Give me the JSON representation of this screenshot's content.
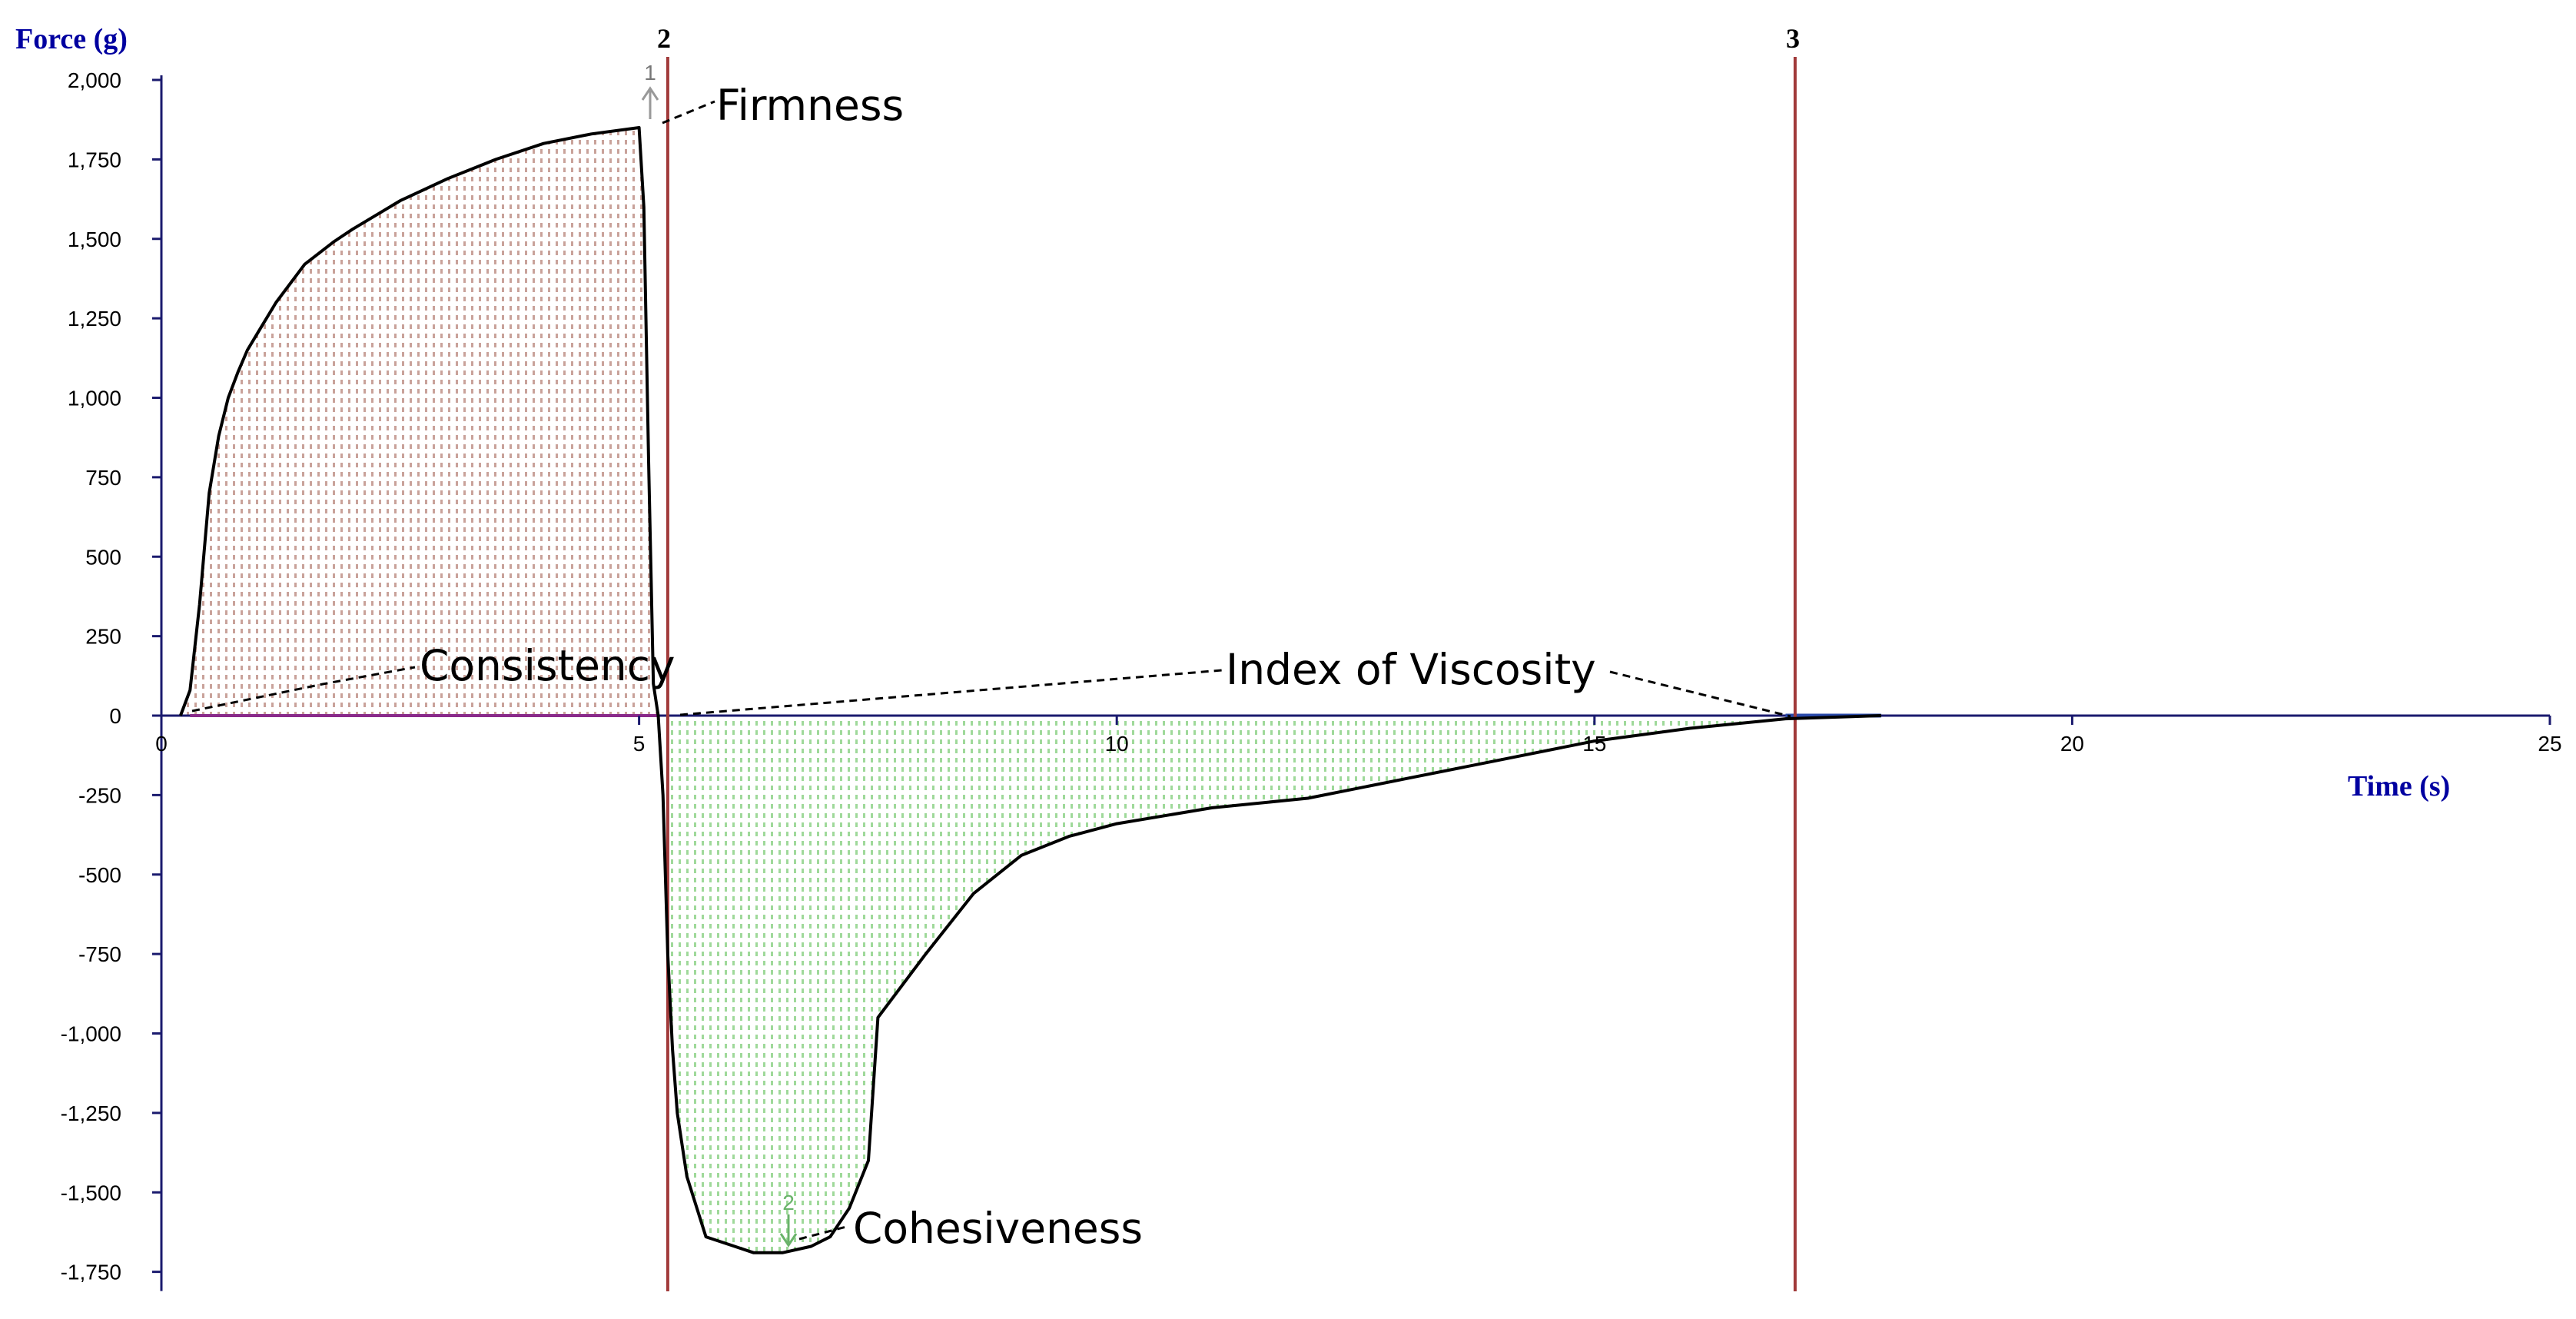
{
  "chart_data": {
    "type": "area",
    "xlabel": "Time (s)",
    "ylabel": "Force (g)",
    "xlim": [
      0,
      25
    ],
    "ylim": [
      -1750,
      2000
    ],
    "x_ticks": [
      "0",
      "5",
      "10",
      "15",
      "20",
      "25"
    ],
    "y_ticks": [
      "2,000",
      "1,750",
      "1,500",
      "1,250",
      "1,000",
      "750",
      "500",
      "250",
      "0",
      "-250",
      "-500",
      "-750",
      "-1,000",
      "-1,250",
      "-1,500",
      "-1,750"
    ],
    "x_tick_values": [
      0,
      5,
      10,
      15,
      20,
      25
    ],
    "y_tick_values": [
      2000,
      1750,
      1500,
      1250,
      1000,
      750,
      500,
      250,
      0,
      -250,
      -500,
      -750,
      -1000,
      -1250,
      -1500,
      -1750
    ],
    "grid": false,
    "series": [
      {
        "positive_color": "#c9a29a",
        "negative_color": "#9fd99a",
        "x": [
          0.2,
          0.3,
          0.4,
          0.5,
          0.6,
          0.7,
          0.8,
          0.9,
          1.0,
          1.2,
          1.5,
          1.8,
          2.0,
          2.5,
          3.0,
          3.5,
          4.0,
          4.5,
          5.0,
          5.05,
          5.1,
          5.15,
          5.2,
          5.25,
          5.3,
          5.35,
          5.4,
          5.5,
          5.7,
          5.9,
          6.0,
          6.2,
          6.5,
          6.8,
          7.0,
          7.2,
          7.4,
          7.5,
          8.0,
          8.5,
          9.0,
          9.5,
          10.0,
          11.0,
          12.0,
          13.0,
          14.0,
          15.0,
          16.0,
          17.0,
          18.0
        ],
        "y": [
          0,
          80,
          350,
          700,
          880,
          1000,
          1080,
          1150,
          1200,
          1300,
          1420,
          1490,
          1530,
          1620,
          1690,
          1750,
          1800,
          1830,
          1850,
          1600,
          800,
          100,
          0,
          -250,
          -750,
          -1050,
          -1250,
          -1450,
          -1640,
          -1660,
          -1670,
          -1690,
          -1690,
          -1670,
          -1640,
          -1550,
          -1400,
          -950,
          -750,
          -560,
          -440,
          -380,
          -340,
          -290,
          -260,
          -200,
          -140,
          -80,
          -40,
          -10,
          0
        ]
      }
    ],
    "markers": [
      {
        "label": "2",
        "x": 5.3
      },
      {
        "label": "3",
        "x": 17.1
      }
    ],
    "annotations": [
      {
        "text": "Firmness"
      },
      {
        "text": "Consistency"
      },
      {
        "text": "Index of Viscosity"
      },
      {
        "text": "Cohesiveness"
      }
    ],
    "point_labels": [
      "1",
      "2"
    ]
  }
}
